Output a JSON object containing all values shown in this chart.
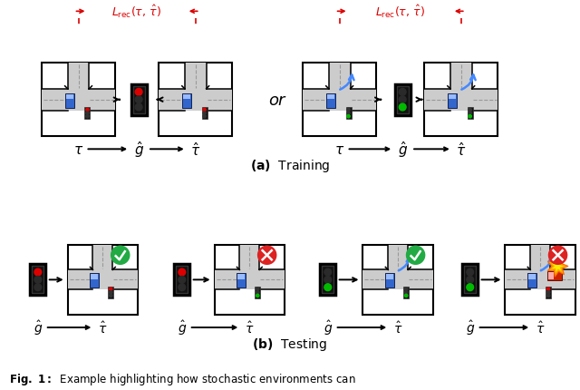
{
  "bg_color": "#ffffff",
  "red_light": "#dd0000",
  "green_light": "#00bb00",
  "blue_car": "#3366cc",
  "red_car": "#cc2200",
  "red_label": "#dd0000",
  "black": "#111111"
}
